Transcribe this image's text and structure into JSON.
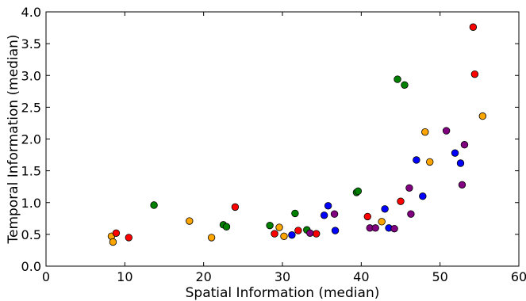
{
  "chart_data": {
    "type": "scatter",
    "title": "",
    "xlabel": "Spatial Information (median)",
    "ylabel": "Temporal Information (median)",
    "xlim": [
      0,
      60
    ],
    "ylim": [
      0,
      4.0
    ],
    "grid": false,
    "legend": "none",
    "x_ticks": [
      0,
      10,
      20,
      30,
      40,
      50,
      60
    ],
    "x_tick_labels": [
      "0",
      "10",
      "20",
      "30",
      "40",
      "50",
      "60"
    ],
    "y_ticks": [
      0,
      0.5,
      1.0,
      1.5,
      2.0,
      2.5,
      3.0,
      3.5,
      4.0
    ],
    "y_tick_labels": [
      "0.0",
      "0.5",
      "1.0",
      "1.5",
      "2.0",
      "2.5",
      "3.0",
      "3.5",
      "4.0"
    ],
    "colors": {
      "orange": "#FFA500",
      "red": "#FF0000",
      "green": "#008000",
      "blue": "#0000FF",
      "purple": "#800080"
    },
    "series": [
      {
        "color": "orange",
        "points": [
          {
            "x": 8.3,
            "y": 0.47
          },
          {
            "x": 8.5,
            "y": 0.38
          },
          {
            "x": 18.2,
            "y": 0.71
          },
          {
            "x": 21.0,
            "y": 0.45
          },
          {
            "x": 29.6,
            "y": 0.61
          },
          {
            "x": 30.2,
            "y": 0.47
          },
          {
            "x": 42.6,
            "y": 0.7
          },
          {
            "x": 48.1,
            "y": 2.11
          },
          {
            "x": 48.7,
            "y": 1.64
          },
          {
            "x": 55.4,
            "y": 2.36
          }
        ]
      },
      {
        "color": "red",
        "points": [
          {
            "x": 8.9,
            "y": 0.52
          },
          {
            "x": 10.5,
            "y": 0.45
          },
          {
            "x": 24.0,
            "y": 0.93
          },
          {
            "x": 29.0,
            "y": 0.51
          },
          {
            "x": 32.0,
            "y": 0.56
          },
          {
            "x": 34.3,
            "y": 0.51
          },
          {
            "x": 40.8,
            "y": 0.78
          },
          {
            "x": 45.0,
            "y": 1.02
          },
          {
            "x": 54.2,
            "y": 3.76
          },
          {
            "x": 54.4,
            "y": 3.02
          }
        ]
      },
      {
        "color": "green",
        "points": [
          {
            "x": 13.7,
            "y": 0.96
          },
          {
            "x": 22.5,
            "y": 0.65
          },
          {
            "x": 22.9,
            "y": 0.62
          },
          {
            "x": 28.4,
            "y": 0.64
          },
          {
            "x": 31.6,
            "y": 0.83
          },
          {
            "x": 33.1,
            "y": 0.57
          },
          {
            "x": 39.4,
            "y": 1.16
          },
          {
            "x": 39.6,
            "y": 1.18
          },
          {
            "x": 44.6,
            "y": 2.94
          },
          {
            "x": 45.5,
            "y": 2.85
          }
        ]
      },
      {
        "color": "blue",
        "points": [
          {
            "x": 31.2,
            "y": 0.49
          },
          {
            "x": 35.3,
            "y": 0.8
          },
          {
            "x": 35.8,
            "y": 0.95
          },
          {
            "x": 36.7,
            "y": 0.56
          },
          {
            "x": 43.0,
            "y": 0.9
          },
          {
            "x": 43.5,
            "y": 0.6
          },
          {
            "x": 47.0,
            "y": 1.67
          },
          {
            "x": 47.8,
            "y": 1.1
          },
          {
            "x": 51.9,
            "y": 1.78
          },
          {
            "x": 52.6,
            "y": 1.62
          }
        ]
      },
      {
        "color": "purple",
        "points": [
          {
            "x": 33.5,
            "y": 0.52
          },
          {
            "x": 36.6,
            "y": 0.82
          },
          {
            "x": 41.1,
            "y": 0.6
          },
          {
            "x": 41.8,
            "y": 0.6
          },
          {
            "x": 44.2,
            "y": 0.59
          },
          {
            "x": 46.1,
            "y": 1.23
          },
          {
            "x": 46.3,
            "y": 0.82
          },
          {
            "x": 50.8,
            "y": 2.13
          },
          {
            "x": 52.8,
            "y": 1.28
          },
          {
            "x": 53.1,
            "y": 1.91
          }
        ]
      }
    ]
  }
}
